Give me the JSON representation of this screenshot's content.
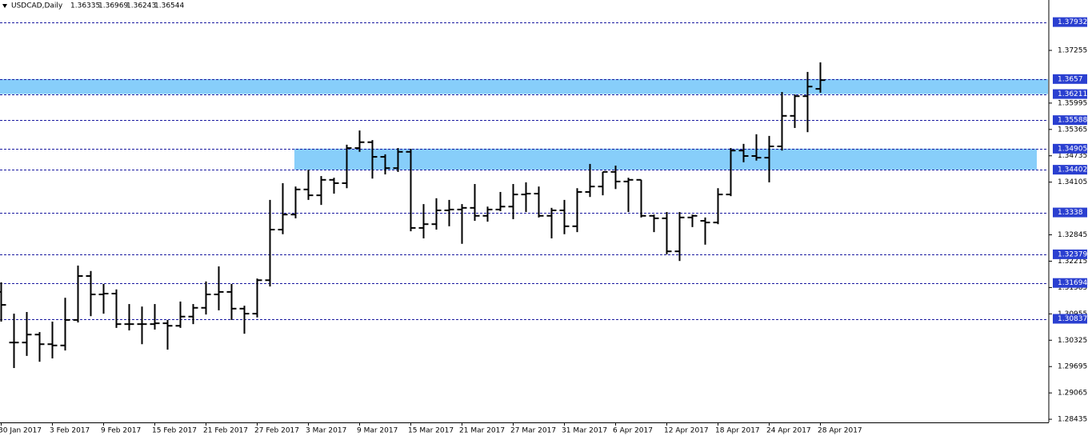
{
  "chart_data": {
    "type": "ohlc",
    "title": "USDCAD,Daily",
    "categories": [
      "30 Jan 2017",
      null,
      null,
      null,
      "3 Feb 2017",
      null,
      null,
      null,
      "9 Feb 2017",
      null,
      null,
      null,
      "15 Feb 2017",
      null,
      null,
      null,
      "21 Feb 2017",
      null,
      null,
      null,
      "27 Feb 2017",
      null,
      null,
      null,
      "3 Mar 2017",
      null,
      null,
      null,
      "9 Mar 2017",
      null,
      null,
      null,
      "15 Mar 2017",
      null,
      null,
      null,
      "21 Mar 2017",
      null,
      null,
      null,
      "27 Mar 2017",
      null,
      null,
      null,
      "31 Mar 2017",
      null,
      null,
      null,
      "6 Apr 2017",
      null,
      null,
      null,
      "12 Apr 2017",
      null,
      null,
      null,
      "18 Apr 2017",
      null,
      null,
      null,
      "24 Apr 2017",
      null,
      null,
      null,
      "28 Apr 2017"
    ],
    "open": [
      1.3148,
      1.3027,
      1.3027,
      1.3046,
      1.3023,
      1.302,
      1.3081,
      1.3186,
      1.3142,
      1.3144,
      1.3071,
      1.3071,
      1.3071,
      1.3073,
      1.3067,
      1.3089,
      1.311,
      1.3142,
      1.3148,
      1.3108,
      1.3096,
      1.3176,
      1.3297,
      1.3333,
      1.3393,
      1.3379,
      1.3416,
      1.3408,
      1.3492,
      1.3506,
      1.3471,
      1.3444,
      1.3483,
      1.3301,
      1.331,
      1.3343,
      1.3345,
      1.3349,
      1.333,
      1.3345,
      1.3352,
      1.3381,
      1.3383,
      1.333,
      1.3343,
      1.3305,
      1.3387,
      1.34,
      1.3435,
      1.3412,
      1.3416,
      1.333,
      1.3324,
      1.3245,
      1.3326,
      1.3318,
      1.3314,
      1.3381,
      1.3486,
      1.3473,
      1.3469,
      1.3496,
      1.3569,
      1.3616,
      1.36335
    ],
    "high": [
      1.3171,
      1.3096,
      1.31,
      1.3052,
      1.3077,
      1.3134,
      1.3211,
      1.3198,
      1.3167,
      1.3154,
      1.3119,
      1.3113,
      1.3119,
      1.3081,
      1.3125,
      1.3119,
      1.3173,
      1.3209,
      1.3167,
      1.3115,
      1.318,
      1.3368,
      1.3408,
      1.34,
      1.344,
      1.3425,
      1.3421,
      1.35,
      1.3534,
      1.3511,
      1.3477,
      1.3492,
      1.349,
      1.3358,
      1.3372,
      1.3368,
      1.3358,
      1.3406,
      1.3352,
      1.3387,
      1.3406,
      1.341,
      1.34,
      1.3349,
      1.3368,
      1.3396,
      1.3454,
      1.3435,
      1.345,
      1.3421,
      1.3416,
      1.3333,
      1.3339,
      1.3339,
      1.3333,
      1.3326,
      1.3396,
      1.3492,
      1.3502,
      1.3525,
      1.3521,
      1.3626,
      1.362,
      1.3674,
      1.36969
    ],
    "low": [
      1.3077,
      1.2966,
      1.2995,
      1.2981,
      1.2989,
      1.3008,
      1.3075,
      1.309,
      1.3096,
      1.3062,
      1.3056,
      1.3023,
      1.3058,
      1.301,
      1.3062,
      1.3071,
      1.3094,
      1.3104,
      1.3081,
      1.3048,
      1.3087,
      1.3161,
      1.3286,
      1.3324,
      1.3368,
      1.3356,
      1.3383,
      1.3396,
      1.3483,
      1.3419,
      1.3429,
      1.3435,
      1.3293,
      1.3276,
      1.3297,
      1.3305,
      1.3263,
      1.3318,
      1.3316,
      1.3341,
      1.3322,
      1.3339,
      1.3326,
      1.3276,
      1.3286,
      1.3291,
      1.3375,
      1.3379,
      1.3394,
      1.3339,
      1.3326,
      1.3291,
      1.3238,
      1.3222,
      1.3303,
      1.3261,
      1.331,
      1.3377,
      1.3458,
      1.3462,
      1.341,
      1.3486,
      1.354,
      1.353,
      1.36243
    ],
    "close": [
      1.3117,
      1.3027,
      1.3046,
      1.3023,
      1.302,
      1.3081,
      1.3186,
      1.3142,
      1.3144,
      1.3071,
      1.3071,
      1.3071,
      1.3073,
      1.3067,
      1.3089,
      1.311,
      1.3142,
      1.3148,
      1.3108,
      1.3096,
      1.3176,
      1.3297,
      1.3333,
      1.3393,
      1.3379,
      1.3416,
      1.3408,
      1.3492,
      1.3506,
      1.3471,
      1.3444,
      1.3483,
      1.3301,
      1.331,
      1.3343,
      1.3345,
      1.3349,
      1.333,
      1.3345,
      1.3352,
      1.3381,
      1.3383,
      1.333,
      1.3343,
      1.3305,
      1.3387,
      1.34,
      1.3435,
      1.3412,
      1.3416,
      1.333,
      1.3324,
      1.3245,
      1.3326,
      1.333,
      1.3314,
      1.3381,
      1.3486,
      1.3473,
      1.3469,
      1.3496,
      1.3569,
      1.3616,
      1.3639,
      1.36544
    ],
    "color": "#000000",
    "ylim": [
      1.2836,
      1.3846
    ],
    "yticks": [
      1.37255,
      1.35995,
      1.35365,
      1.34735,
      1.34105,
      1.32845,
      1.32215,
      1.31585,
      1.30955,
      1.30325,
      1.29695,
      1.29065,
      1.28435
    ],
    "levels": [
      1.37932,
      1.3657,
      1.36211,
      1.35588,
      1.34905,
      1.34402,
      1.3338,
      1.32379,
      1.31694,
      1.30837
    ],
    "level_color": "#1a1aa0",
    "zones": [
      [
        1.36211,
        1.3657
      ],
      [
        1.34402,
        1.34905
      ]
    ],
    "zone_color": "#87cefa",
    "grid": false
  }
}
